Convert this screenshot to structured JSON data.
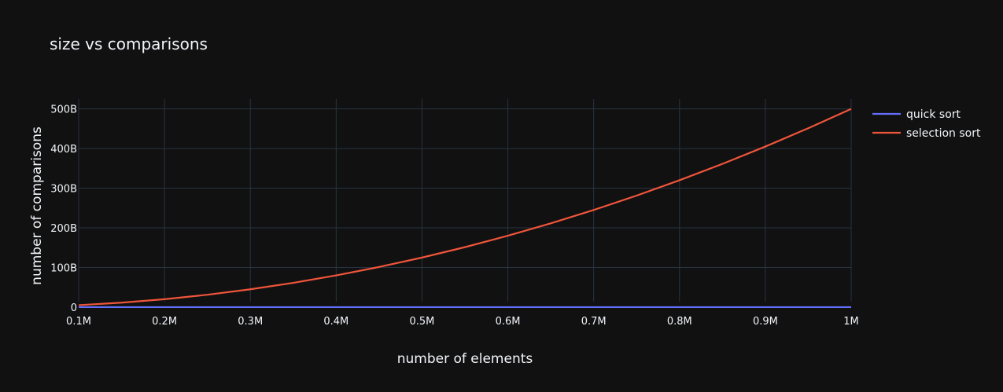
{
  "chart_data": {
    "type": "line",
    "title": "size vs comparisons",
    "xlabel": "number of elements",
    "ylabel": "number of comparisons",
    "xlim": [
      100000,
      1000000
    ],
    "ylim": [
      -10000000000,
      525000000000
    ],
    "grid": true,
    "legend_position": "top-right",
    "x_ticks": [
      {
        "value": 100000,
        "label": "0.1M"
      },
      {
        "value": 200000,
        "label": "0.2M"
      },
      {
        "value": 300000,
        "label": "0.3M"
      },
      {
        "value": 400000,
        "label": "0.4M"
      },
      {
        "value": 500000,
        "label": "0.5M"
      },
      {
        "value": 600000,
        "label": "0.6M"
      },
      {
        "value": 700000,
        "label": "0.7M"
      },
      {
        "value": 800000,
        "label": "0.8M"
      },
      {
        "value": 900000,
        "label": "0.9M"
      },
      {
        "value": 1000000,
        "label": "1M"
      }
    ],
    "y_ticks": [
      {
        "value": 0,
        "label": "0"
      },
      {
        "value": 100000000000,
        "label": "100B"
      },
      {
        "value": 200000000000,
        "label": "200B"
      },
      {
        "value": 300000000000,
        "label": "300B"
      },
      {
        "value": 400000000000,
        "label": "400B"
      },
      {
        "value": 500000000000,
        "label": "500B"
      }
    ],
    "x": [
      100000,
      150000,
      200000,
      250000,
      300000,
      350000,
      400000,
      450000,
      500000,
      550000,
      600000,
      650000,
      700000,
      750000,
      800000,
      850000,
      900000,
      950000,
      1000000
    ],
    "series": [
      {
        "name": "quick sort",
        "color": "#636efa",
        "values": [
          1700000,
          2600000,
          3500000,
          4500000,
          5500000,
          6400000,
          7400000,
          8500000,
          9500000,
          10500000,
          11500000,
          12500000,
          13600000,
          14600000,
          15700000,
          16700000,
          17800000,
          18800000,
          19900000
        ]
      },
      {
        "name": "selection sort",
        "color": "#ef553b",
        "values": [
          5000000000,
          11250000000,
          20000000000,
          31250000000,
          45000000000,
          61250000000,
          80000000000,
          101250000000,
          125000000000,
          151250000000,
          180000000000,
          211250000000,
          245000000000,
          281250000000,
          320000000000,
          361250000000,
          405000000000,
          451250000000,
          500000000000
        ]
      }
    ]
  }
}
